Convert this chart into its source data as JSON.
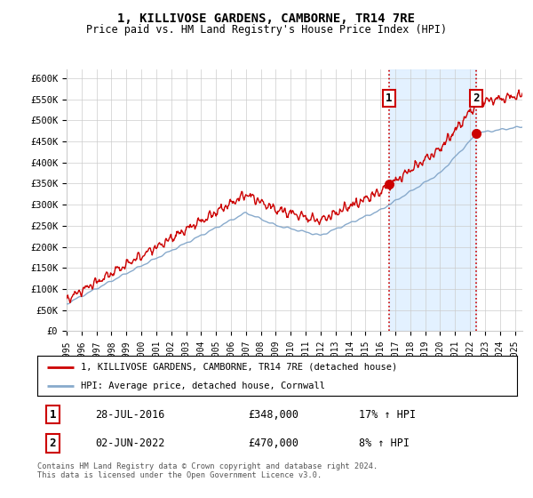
{
  "title": "1, KILLIVOSE GARDENS, CAMBORNE, TR14 7RE",
  "subtitle": "Price paid vs. HM Land Registry's House Price Index (HPI)",
  "ylabel_ticks": [
    "£0",
    "£50K",
    "£100K",
    "£150K",
    "£200K",
    "£250K",
    "£300K",
    "£350K",
    "£400K",
    "£450K",
    "£500K",
    "£550K",
    "£600K"
  ],
  "ytick_values": [
    0,
    50000,
    100000,
    150000,
    200000,
    250000,
    300000,
    350000,
    400000,
    450000,
    500000,
    550000,
    600000
  ],
  "ylim": [
    0,
    620000
  ],
  "xlim_start": 1995.0,
  "xlim_end": 2025.5,
  "sale1_x": 2016.57,
  "sale1_y": 348000,
  "sale2_x": 2022.42,
  "sale2_y": 470000,
  "sale1_label": "28-JUL-2016",
  "sale1_price": "£348,000",
  "sale1_hpi": "17% ↑ HPI",
  "sale2_label": "02-JUN-2022",
  "sale2_price": "£470,000",
  "sale2_hpi": "8% ↑ HPI",
  "legend_line1": "1, KILLIVOSE GARDENS, CAMBORNE, TR14 7RE (detached house)",
  "legend_line2": "HPI: Average price, detached house, Cornwall",
  "footer": "Contains HM Land Registry data © Crown copyright and database right 2024.\nThis data is licensed under the Open Government Licence v3.0.",
  "line_color_red": "#cc0000",
  "line_color_blue": "#88aacc",
  "shade_color": "#ddeeff",
  "background_color": "#ffffff",
  "grid_color": "#cccccc",
  "dashed_line_color": "#cc0000"
}
